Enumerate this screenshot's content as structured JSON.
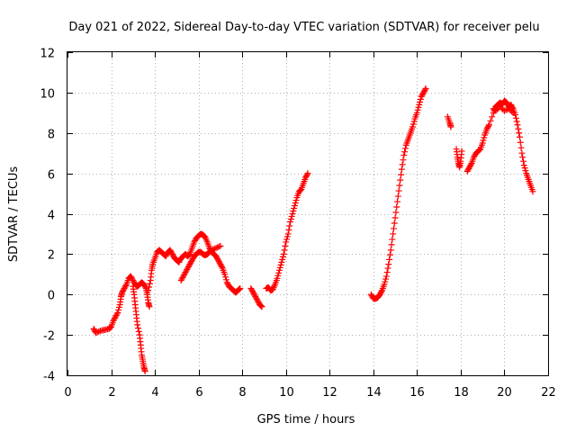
{
  "chart_data": {
    "type": "scatter",
    "title": "Day 021 of 2022, Sidereal Day-to-day VTEC variation (SDTVAR) for receiver pelu",
    "xlabel": "GPS time / hours",
    "ylabel": "SDTVAR / TECUs",
    "xlim": [
      0,
      22
    ],
    "ylim": [
      -4,
      12
    ],
    "xticks": [
      0,
      2,
      4,
      6,
      8,
      10,
      12,
      14,
      16,
      18,
      20,
      22
    ],
    "yticks": [
      -4,
      -2,
      0,
      2,
      4,
      6,
      8,
      10,
      12
    ],
    "grid": true,
    "marker": "plus",
    "color": "#ff0000",
    "series": [
      {
        "name": "SDTVAR",
        "segments": [
          [
            [
              1.2,
              -1.7
            ],
            [
              1.3,
              -1.9
            ],
            [
              1.5,
              -1.8
            ],
            [
              1.7,
              -1.75
            ],
            [
              1.9,
              -1.7
            ],
            [
              2.0,
              -1.6
            ],
            [
              2.1,
              -1.3
            ],
            [
              2.2,
              -1.1
            ],
            [
              2.3,
              -0.9
            ],
            [
              2.4,
              -0.5
            ],
            [
              2.45,
              -0.1
            ],
            [
              2.5,
              0.1
            ],
            [
              2.6,
              0.3
            ],
            [
              2.7,
              0.5
            ],
            [
              2.8,
              0.8
            ],
            [
              2.9,
              0.9
            ],
            [
              3.0,
              0.7
            ],
            [
              3.1,
              0.5
            ],
            [
              3.2,
              0.4
            ],
            [
              3.3,
              0.5
            ],
            [
              3.4,
              0.6
            ],
            [
              3.5,
              0.5
            ],
            [
              3.6,
              0.3
            ],
            [
              3.65,
              0.0
            ],
            [
              3.7,
              -0.4
            ],
            [
              3.75,
              -0.6
            ]
          ],
          [
            [
              3.0,
              0.4
            ],
            [
              3.05,
              0.0
            ],
            [
              3.1,
              -0.5
            ],
            [
              3.15,
              -1.0
            ],
            [
              3.2,
              -1.5
            ],
            [
              3.3,
              -2.0
            ],
            [
              3.35,
              -2.5
            ],
            [
              3.4,
              -3.0
            ],
            [
              3.45,
              -3.3
            ],
            [
              3.5,
              -3.6
            ],
            [
              3.55,
              -3.8
            ]
          ],
          [
            [
              3.7,
              0.2
            ],
            [
              3.8,
              0.7
            ],
            [
              3.85,
              1.2
            ],
            [
              3.9,
              1.5
            ],
            [
              4.0,
              1.8
            ],
            [
              4.1,
              2.1
            ],
            [
              4.2,
              2.2
            ],
            [
              4.3,
              2.1
            ],
            [
              4.4,
              2.0
            ],
            [
              4.5,
              1.9
            ],
            [
              4.6,
              2.1
            ],
            [
              4.7,
              2.2
            ],
            [
              4.8,
              2.0
            ],
            [
              4.9,
              1.8
            ],
            [
              5.0,
              1.7
            ],
            [
              5.1,
              1.6
            ],
            [
              5.2,
              1.8
            ],
            [
              5.3,
              1.9
            ],
            [
              5.4,
              2.0
            ],
            [
              5.5,
              1.9
            ],
            [
              5.6,
              2.0
            ],
            [
              5.7,
              2.3
            ],
            [
              5.8,
              2.6
            ],
            [
              5.9,
              2.8
            ],
            [
              6.0,
              2.9
            ],
            [
              6.1,
              3.0
            ],
            [
              6.2,
              2.95
            ],
            [
              6.3,
              2.85
            ],
            [
              6.4,
              2.6
            ],
            [
              6.5,
              2.3
            ],
            [
              6.6,
              2.1
            ],
            [
              6.7,
              2.0
            ],
            [
              6.8,
              1.9
            ],
            [
              6.9,
              1.7
            ],
            [
              7.0,
              1.5
            ],
            [
              7.1,
              1.3
            ],
            [
              7.2,
              1.0
            ],
            [
              7.3,
              0.6
            ],
            [
              7.4,
              0.4
            ],
            [
              7.5,
              0.3
            ],
            [
              7.6,
              0.2
            ],
            [
              7.7,
              0.1
            ],
            [
              7.8,
              0.2
            ],
            [
              7.9,
              0.3
            ]
          ],
          [
            [
              5.2,
              0.7
            ],
            [
              5.3,
              0.9
            ],
            [
              5.4,
              1.1
            ],
            [
              5.5,
              1.3
            ],
            [
              5.6,
              1.5
            ],
            [
              5.7,
              1.7
            ],
            [
              5.8,
              1.9
            ],
            [
              5.9,
              2.0
            ],
            [
              6.0,
              2.1
            ],
            [
              6.1,
              2.1
            ],
            [
              6.2,
              2.0
            ],
            [
              6.3,
              1.95
            ],
            [
              6.4,
              2.0
            ],
            [
              6.5,
              2.1
            ],
            [
              6.6,
              2.2
            ],
            [
              6.8,
              2.3
            ],
            [
              7.0,
              2.4
            ]
          ],
          [
            [
              8.4,
              0.3
            ],
            [
              8.5,
              0.1
            ],
            [
              8.6,
              -0.1
            ],
            [
              8.7,
              -0.3
            ],
            [
              8.8,
              -0.5
            ],
            [
              8.9,
              -0.6
            ]
          ],
          [
            [
              9.1,
              0.3
            ],
            [
              9.2,
              0.35
            ],
            [
              9.3,
              0.2
            ],
            [
              9.4,
              0.25
            ],
            [
              9.5,
              0.5
            ],
            [
              9.6,
              0.8
            ],
            [
              9.7,
              1.2
            ],
            [
              9.8,
              1.6
            ],
            [
              9.9,
              2.0
            ],
            [
              10.0,
              2.6
            ],
            [
              10.1,
              3.0
            ],
            [
              10.2,
              3.6
            ],
            [
              10.3,
              4.0
            ],
            [
              10.4,
              4.4
            ],
            [
              10.5,
              4.8
            ],
            [
              10.6,
              5.1
            ],
            [
              10.7,
              5.2
            ],
            [
              10.8,
              5.5
            ],
            [
              10.9,
              5.8
            ],
            [
              11.0,
              6.0
            ]
          ],
          [
            [
              13.9,
              0.0
            ],
            [
              14.0,
              -0.2
            ],
            [
              14.1,
              -0.2
            ],
            [
              14.2,
              -0.15
            ],
            [
              14.3,
              0.0
            ],
            [
              14.4,
              0.2
            ],
            [
              14.5,
              0.5
            ],
            [
              14.6,
              0.9
            ],
            [
              14.7,
              1.5
            ],
            [
              14.8,
              2.2
            ],
            [
              14.9,
              3.0
            ],
            [
              15.0,
              3.8
            ],
            [
              15.1,
              4.6
            ],
            [
              15.2,
              5.4
            ],
            [
              15.3,
              6.2
            ],
            [
              15.4,
              6.9
            ],
            [
              15.5,
              7.4
            ],
            [
              15.6,
              7.7
            ],
            [
              15.7,
              8.0
            ],
            [
              15.8,
              8.3
            ],
            [
              15.9,
              8.7
            ],
            [
              16.0,
              9.0
            ],
            [
              16.1,
              9.4
            ],
            [
              16.2,
              9.8
            ],
            [
              16.3,
              10.0
            ],
            [
              16.4,
              10.2
            ]
          ],
          [
            [
              17.4,
              8.8
            ],
            [
              17.5,
              8.5
            ],
            [
              17.55,
              8.3
            ]
          ],
          [
            [
              17.8,
              7.2
            ],
            [
              17.85,
              6.8
            ],
            [
              17.9,
              6.5
            ],
            [
              17.95,
              6.3
            ],
            [
              18.0,
              6.6
            ],
            [
              18.05,
              7.1
            ]
          ],
          [
            [
              18.3,
              6.1
            ],
            [
              18.4,
              6.3
            ],
            [
              18.5,
              6.5
            ],
            [
              18.6,
              6.8
            ],
            [
              18.7,
              7.0
            ],
            [
              18.8,
              7.1
            ],
            [
              18.9,
              7.2
            ],
            [
              19.0,
              7.5
            ],
            [
              19.1,
              7.9
            ],
            [
              19.2,
              8.2
            ],
            [
              19.3,
              8.4
            ],
            [
              19.5,
              9.0
            ],
            [
              19.6,
              9.3
            ],
            [
              19.7,
              9.4
            ],
            [
              19.8,
              9.5
            ],
            [
              19.9,
              9.4
            ],
            [
              20.0,
              9.6
            ],
            [
              20.1,
              9.5
            ],
            [
              20.2,
              9.3
            ],
            [
              20.3,
              9.4
            ],
            [
              20.4,
              9.2
            ],
            [
              20.5,
              8.9
            ],
            [
              20.6,
              8.4
            ],
            [
              20.7,
              7.8
            ],
            [
              20.8,
              7.0
            ],
            [
              20.9,
              6.4
            ],
            [
              21.0,
              6.0
            ],
            [
              21.1,
              5.7
            ],
            [
              21.2,
              5.4
            ],
            [
              21.3,
              5.1
            ]
          ],
          [
            [
              19.5,
              9.2
            ],
            [
              19.6,
              9.1
            ],
            [
              19.8,
              9.3
            ],
            [
              20.0,
              9.1
            ],
            [
              20.2,
              9.2
            ],
            [
              20.4,
              9.0
            ]
          ]
        ]
      }
    ]
  }
}
